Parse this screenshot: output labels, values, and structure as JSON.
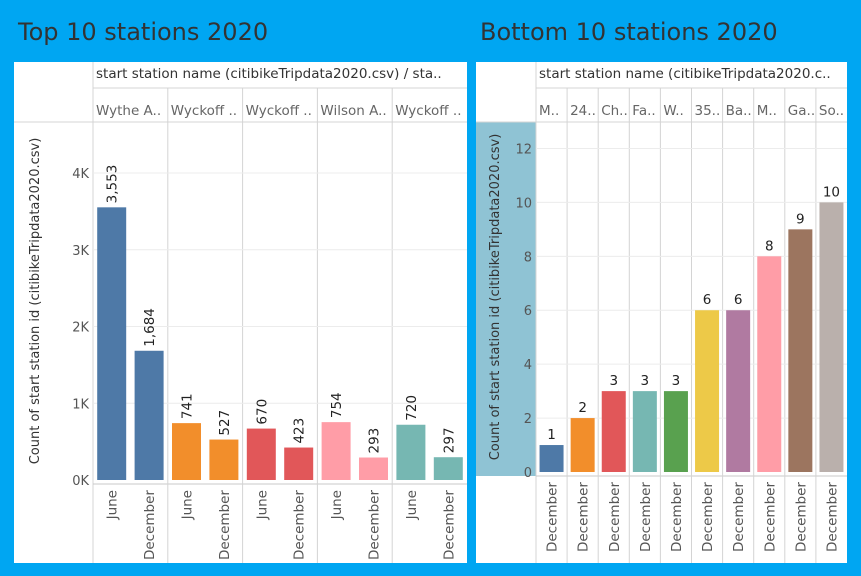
{
  "colors": {
    "background": "#00a6f2",
    "panel": "#ffffff",
    "highlight_axis": "#8fc3d4"
  },
  "left": {
    "title": "Top 10 stations 2020",
    "header": "start station name (citibikeTripdata2020.csv) / sta..",
    "y_axis_label": "Count of start station id (citibikeTripdata2020.csv)",
    "y_ticks": [
      "0K",
      "1K",
      "2K",
      "3K",
      "4K"
    ]
  },
  "right": {
    "title": "Bottom 10 stations 2020",
    "header": "start station name (citibikeTripdata2020.c..",
    "y_axis_label": "Count of start station id (citibikeTripdata2020.csv)",
    "y_ticks": [
      "0",
      "2",
      "4",
      "6",
      "8",
      "10",
      "12"
    ]
  },
  "chart_data": [
    {
      "type": "bar",
      "title": "Top 10 stations 2020",
      "ylabel": "Count of start station id (citibikeTripdata2020.csv)",
      "ylim": [
        0,
        4300
      ],
      "groups": [
        {
          "name": "Wythe A..",
          "color": "#4e79a7",
          "bars": [
            {
              "x": "June",
              "value": 3553,
              "label": "3,553"
            },
            {
              "x": "December",
              "value": 1684,
              "label": "1,684"
            }
          ]
        },
        {
          "name": "Wyckoff ..",
          "color": "#f28e2b",
          "bars": [
            {
              "x": "June",
              "value": 741,
              "label": "741"
            },
            {
              "x": "December",
              "value": 527,
              "label": "527"
            }
          ]
        },
        {
          "name": "Wyckoff ..",
          "color": "#e15759",
          "bars": [
            {
              "x": "June",
              "value": 670,
              "label": "670"
            },
            {
              "x": "December",
              "value": 423,
              "label": "423"
            }
          ]
        },
        {
          "name": "Wilson A..",
          "color": "#ff9da7",
          "bars": [
            {
              "x": "June",
              "value": 754,
              "label": "754"
            },
            {
              "x": "December",
              "value": 293,
              "label": "293"
            }
          ]
        },
        {
          "name": "Wyckoff ..",
          "color": "#76b7b2",
          "bars": [
            {
              "x": "June",
              "value": 720,
              "label": "720"
            },
            {
              "x": "December",
              "value": 297,
              "label": "297"
            }
          ]
        }
      ]
    },
    {
      "type": "bar",
      "title": "Bottom 10 stations 2020",
      "ylabel": "Count of start station id (citibikeTripdata2020.csv)",
      "ylim": [
        0,
        12.5
      ],
      "groups": [
        {
          "name": "M..",
          "color": "#4e79a7",
          "bars": [
            {
              "x": "December",
              "value": 1,
              "label": "1"
            }
          ]
        },
        {
          "name": "24..",
          "color": "#f28e2b",
          "bars": [
            {
              "x": "December",
              "value": 2,
              "label": "2"
            }
          ]
        },
        {
          "name": "Ch..",
          "color": "#e15759",
          "bars": [
            {
              "x": "December",
              "value": 3,
              "label": "3"
            }
          ]
        },
        {
          "name": "Fa..",
          "color": "#76b7b2",
          "bars": [
            {
              "x": "December",
              "value": 3,
              "label": "3"
            }
          ]
        },
        {
          "name": "W..",
          "color": "#59a14f",
          "bars": [
            {
              "x": "December",
              "value": 3,
              "label": "3"
            }
          ]
        },
        {
          "name": "35..",
          "color": "#edc948",
          "bars": [
            {
              "x": "December",
              "value": 6,
              "label": "6"
            }
          ]
        },
        {
          "name": "Ba..",
          "color": "#b07aa1",
          "bars": [
            {
              "x": "December",
              "value": 6,
              "label": "6"
            }
          ]
        },
        {
          "name": "M..",
          "color": "#ff9da7",
          "bars": [
            {
              "x": "December",
              "value": 8,
              "label": "8"
            }
          ]
        },
        {
          "name": "Ga..",
          "color": "#9c755f",
          "bars": [
            {
              "x": "December",
              "value": 9,
              "label": "9"
            }
          ]
        },
        {
          "name": "So..",
          "color": "#bab0ac",
          "bars": [
            {
              "x": "December",
              "value": 10,
              "label": "10"
            }
          ]
        }
      ]
    }
  ]
}
